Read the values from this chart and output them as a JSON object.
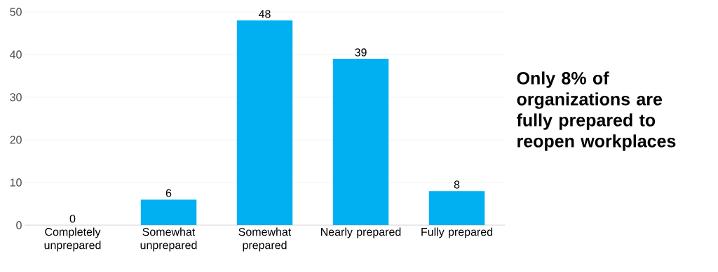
{
  "chart_data": {
    "type": "bar",
    "categories": [
      "Completely unprepared",
      "Somewhat unprepared",
      "Somewhat prepared",
      "Nearly prepared",
      "Fully prepared"
    ],
    "values": [
      0,
      6,
      48,
      39,
      8
    ],
    "color": "#00b0f0",
    "ylim": [
      0,
      50
    ],
    "yticks": [
      0,
      10,
      20,
      30,
      40,
      50
    ],
    "grid": "y",
    "data_labels": true,
    "annotations": [
      "Only 8% of organizations are fully prepared to reopen workplaces"
    ]
  }
}
